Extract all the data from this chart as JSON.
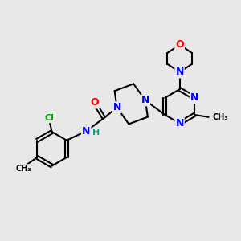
{
  "background_color": "#e8e8e8",
  "atom_colors": {
    "C": "#000000",
    "N": "#0000ff",
    "O": "#ff0000",
    "Cl": "#00aa00",
    "H": "#00aa88"
  },
  "figsize": [
    3.0,
    3.0
  ],
  "dpi": 100
}
